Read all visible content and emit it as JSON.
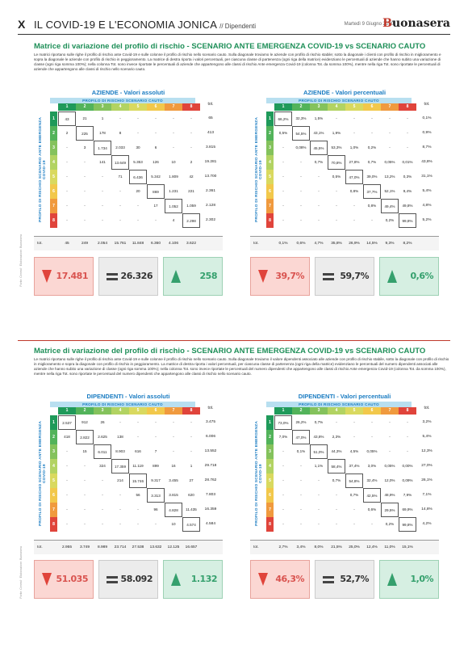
{
  "header": {
    "page_letter": "X",
    "title": "IL COVID-19 E L'ECONOMIA JONICA",
    "subtitle": "// Dipendenti",
    "date": "Martedì 9 Giugno 2020",
    "logo_b": "B",
    "logo_rest": "uonasera"
  },
  "credit": "Fonte: Cerved · Elaborazione: Buonasera",
  "sections": [
    {
      "title": "Matrice di variazione del profilo di rischio - SCENARIO ANTE EMERGENZA COVID-19 vs SCENARIO CAUTO",
      "text": "Le matrici riportano sulle righe il profilo di rischio ante Covid-19 e sulle colonne il profilo di rischio nello scenario cauto. Sulla diagonale troviamo le aziende con profilo di rischio stabile; sotto la diagonale i clienti con profilo di rischio in miglioramento e sopra la diagonale le aziende con profilo di rischio in peggioramento. La matrice di destra riporta i valori percentuali, per ciascuna classe di partenenza (ogni riga della matrice) evidenziano le percentuali di aziende che hanno subito una variazione di classe (ogni riga somma 100%); nella colonna Tot. sono invece riportate le percentuali di aziende che appartengono alle classi di rischio Ante emergenza Covid-19 (colonna Tot. da somma 100%), mentre nella riga Tot. sono riportate le percentuali di aziende che appartengono alle classi di rischio nello scenario cauto.",
      "left": {
        "title": "AZIENDE - Valori assoluti",
        "rows": [
          [
            "43",
            "21",
            "1",
            "-",
            "-",
            "-",
            "-",
            "-"
          ],
          [
            "2",
            "225",
            "178",
            "8",
            "-",
            "-",
            "-",
            "-"
          ],
          [
            "-",
            "3",
            "1.734",
            "2.033",
            "30",
            "6",
            "-",
            "-"
          ],
          [
            "-",
            "-",
            "141",
            "13.649",
            "5.353",
            "126",
            "10",
            "2"
          ],
          [
            "-",
            "-",
            "-",
            "71",
            "6.436",
            "5.342",
            "1.809",
            "42"
          ],
          [
            "-",
            "-",
            "-",
            "-",
            "20",
            "869",
            "1.231",
            "221"
          ],
          [
            "-",
            "-",
            "-",
            "-",
            "-",
            "17",
            "1.052",
            "1.059"
          ],
          [
            "-",
            "-",
            "-",
            "-",
            "-",
            "-",
            "4",
            "2.298"
          ]
        ],
        "row_tot": [
          "65",
          "413",
          "3.815",
          "19.281",
          "13.700",
          "2.361",
          "2.128",
          "2.302"
        ],
        "col_tot": [
          "45",
          "249",
          "2.054",
          "15.761",
          "11.848",
          "6.360",
          "4.106",
          "3.622"
        ]
      },
      "right": {
        "title": "AZIENDE - Valori percentuali",
        "rows": [
          [
            "66,2%",
            "32,3%",
            "1,5%",
            "-",
            "-",
            "-",
            "-",
            "-"
          ],
          [
            "0,5%",
            "54,5%",
            "43,1%",
            "1,9%",
            "-",
            "-",
            "-",
            "-"
          ],
          [
            "-",
            "0,08%",
            "45,5%",
            "53,3%",
            "1,0%",
            "0,2%",
            "-",
            "-"
          ],
          [
            "-",
            "-",
            "0,7%",
            "70,8%",
            "27,8%",
            "0,7%",
            "0,05%",
            "0,01%"
          ],
          [
            "-",
            "-",
            "-",
            "0,5%",
            "47,0%",
            "39,0%",
            "13,2%",
            "0,3%"
          ],
          [
            "-",
            "-",
            "-",
            "-",
            "0,8%",
            "37,7%",
            "52,1%",
            "9,4%"
          ],
          [
            "-",
            "-",
            "-",
            "-",
            "-",
            "0,8%",
            "49,4%",
            "49,8%"
          ],
          [
            "-",
            "-",
            "-",
            "-",
            "-",
            "-",
            "0,2%",
            "99,8%"
          ]
        ],
        "row_tot": [
          "0,1%",
          "0,9%",
          "8,7%",
          "43,8%",
          "31,1%",
          "5,4%",
          "4,8%",
          "5,2%"
        ],
        "col_tot": [
          "0,1%",
          "0,6%",
          "4,7%",
          "35,8%",
          "26,9%",
          "14,5%",
          "9,3%",
          "8,2%"
        ]
      },
      "boxes": [
        "17.481",
        "26.326",
        "258",
        "39,7%",
        "59,7%",
        "0,6%"
      ]
    },
    {
      "title": "Matrice di variazione del profilo di rischio - SCENARIO ANTE EMERGENZA COVID-19 vs SCENARIO CAUTO",
      "text": "Le matrici riportano sulle righe il profilo di rischio ante Covid-19 e sulle colonne il profilo di rischio nello scenario cauto. Sulla diagonale troviamo il valore dipendenti associato alle aziende con profilo di rischio stabile, sotto la diagonale con profilo di rischio in miglioramento e sopra la diagonale con profilo di rischio in peggioramento. La matrice di destra riporta i valori percentuali, per ciascuna classe di partenenza (ogni riga della matrice) evidenziano le percentuali del numero dipendenti associati alle aziende che hanno subito una variazione di classe (ogni riga somma 100%); nella colonna Tot. sono invece riportate le percentuali del numero dipendenti che appartengono alle classi di rischio Ante emergenza Covid-19 (colonna Tot. da somma 100%), mentre nella riga Tot. sono riportate le percentuali del numero dipendenti che appartengono alle classi di rischio nello scenario cauto.",
      "left": {
        "title": "DIPENDENTI - Valori assoluti",
        "rows": [
          [
            "2.537",
            "912",
            "26",
            "-",
            "-",
            "-",
            "-",
            "-"
          ],
          [
            "418",
            "2.822",
            "2.625",
            "138",
            "-",
            "-",
            "-",
            "-"
          ],
          [
            "-",
            "15",
            "6.011",
            "8.903",
            "616",
            "7",
            "-",
            "-"
          ],
          [
            "-",
            "-",
            "324",
            "17.359",
            "11.119",
            "899",
            "16",
            "1"
          ],
          [
            "-",
            "-",
            "-",
            "214",
            "15.746",
            "9.317",
            "3.455",
            "27"
          ],
          [
            "-",
            "-",
            "-",
            "-",
            "56",
            "3.313",
            "3.815",
            "620"
          ],
          [
            "-",
            "-",
            "-",
            "-",
            "-",
            "96",
            "4.828",
            "11.435"
          ],
          [
            "-",
            "-",
            "-",
            "-",
            "-",
            "-",
            "10",
            "4.574"
          ]
        ],
        "row_tot": [
          "3.475",
          "6.006",
          "13.552",
          "29.718",
          "28.762",
          "7.803",
          "16.359",
          "4.584"
        ],
        "col_tot": [
          "2.955",
          "3.749",
          "8.989",
          "23.714",
          "27.538",
          "13.632",
          "12.125",
          "16.657"
        ]
      },
      "right": {
        "title": "DIPENDENTI - Valori percentuali",
        "rows": [
          [
            "73,0%",
            "26,2%",
            "0,7%",
            "-",
            "-",
            "-",
            "-",
            "-"
          ],
          [
            "7,0%",
            "47,0%",
            "43,8%",
            "2,3%",
            "-",
            "-",
            "-",
            "-"
          ],
          [
            "-",
            "0,1%",
            "51,0%",
            "44,3%",
            "4,5%",
            "0,05%",
            "-",
            "-"
          ],
          [
            "-",
            "-",
            "1,1%",
            "58,4%",
            "37,4%",
            "3,0%",
            "0,05%",
            "0,00%"
          ],
          [
            "-",
            "-",
            "-",
            "0,7%",
            "54,8%",
            "32,4%",
            "12,0%",
            "0,09%"
          ],
          [
            "-",
            "-",
            "-",
            "-",
            "0,7%",
            "42,5%",
            "48,9%",
            "7,9%"
          ],
          [
            "-",
            "-",
            "-",
            "-",
            "-",
            "0,6%",
            "29,5%",
            "69,9%"
          ],
          [
            "-",
            "-",
            "-",
            "-",
            "-",
            "-",
            "0,2%",
            "99,8%"
          ]
        ],
        "row_tot": [
          "3,2%",
          "5,4%",
          "12,3%",
          "27,0%",
          "26,1%",
          "7,1%",
          "14,8%",
          "4,2%"
        ],
        "col_tot": [
          "2,7%",
          "3,4%",
          "8,0%",
          "21,5%",
          "25,0%",
          "12,4%",
          "11,0%",
          "15,1%"
        ]
      },
      "boxes": [
        "51.035",
        "58.092",
        "1.132",
        "46,3%",
        "52,7%",
        "1,0%"
      ]
    }
  ],
  "labels": {
    "profile": "PROFILO DI RISCHIO SCENARIO CAUTO",
    "vertical": "PROFILO DI RISCHIO SCENARIO ANTE EMERGENZA COVID-19",
    "tot": "tot.",
    "classes": [
      "1",
      "2",
      "3",
      "4",
      "5",
      "6",
      "7",
      "8"
    ]
  },
  "colors": {
    "class": [
      "#1f9a5a",
      "#52b35a",
      "#84c25c",
      "#b2d362",
      "#d9d95f",
      "#f2c84b",
      "#f09a3e",
      "#e0443b"
    ],
    "accent_green": "#1e8f58",
    "accent_blue": "#1a7cc2",
    "rule_red": "#c0392b"
  },
  "icons": [
    "down-arrow-icon",
    "equal-icon",
    "up-arrow-icon"
  ]
}
